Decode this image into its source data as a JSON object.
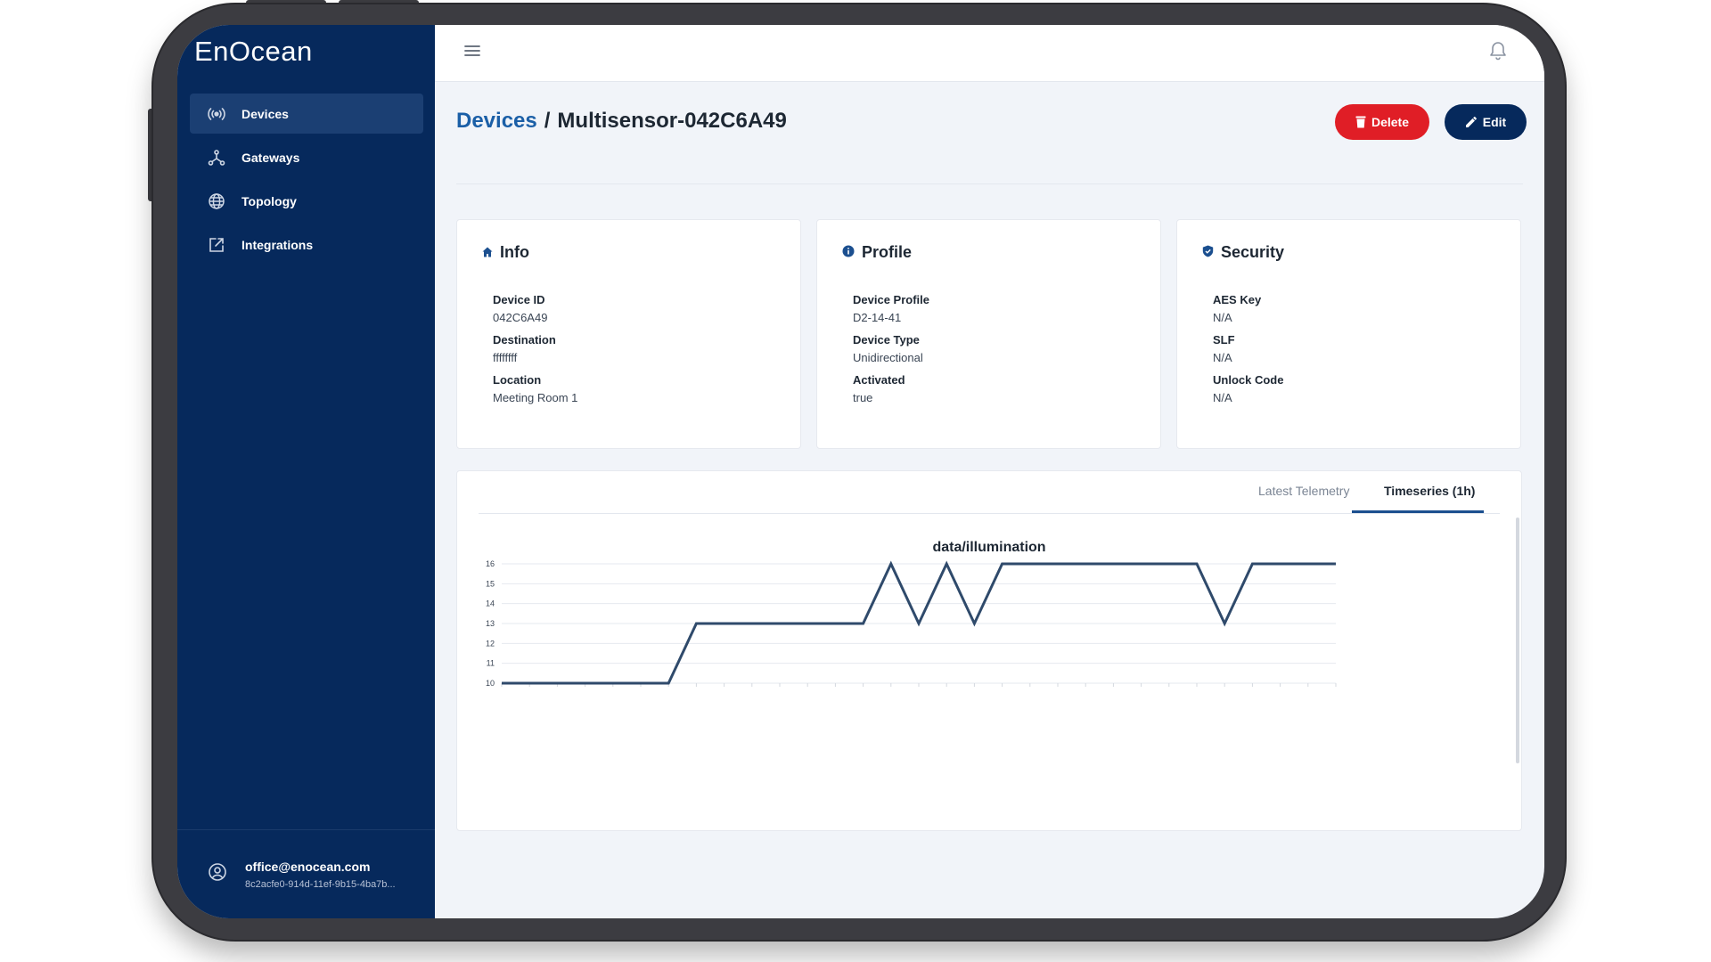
{
  "app": {
    "logo": "EnOcean"
  },
  "sidebar": {
    "items": [
      {
        "label": "Devices",
        "icon": "radio-waves-icon",
        "active": true
      },
      {
        "label": "Gateways",
        "icon": "network-icon",
        "active": false
      },
      {
        "label": "Topology",
        "icon": "globe-icon",
        "active": false
      },
      {
        "label": "Integrations",
        "icon": "external-link-icon",
        "active": false
      }
    ],
    "user": {
      "email": "office@enocean.com",
      "id": "8c2acfe0-914d-11ef-9b15-4ba7b..."
    }
  },
  "header": {
    "breadcrumb_root": "Devices",
    "breadcrumb_separator": "/",
    "device_name": "Multisensor-042C6A49",
    "delete_label": "Delete",
    "edit_label": "Edit"
  },
  "cards": {
    "info": {
      "title": "Info",
      "fields": [
        {
          "label": "Device ID",
          "value": "042C6A49"
        },
        {
          "label": "Destination",
          "value": "ffffffff"
        },
        {
          "label": "Location",
          "value": "Meeting Room 1"
        }
      ]
    },
    "profile": {
      "title": "Profile",
      "fields": [
        {
          "label": "Device Profile",
          "value": "D2-14-41"
        },
        {
          "label": "Device Type",
          "value": "Unidirectional"
        },
        {
          "label": "Activated",
          "value": "true"
        }
      ]
    },
    "security": {
      "title": "Security",
      "fields": [
        {
          "label": "AES Key",
          "value": "N/A"
        },
        {
          "label": "SLF",
          "value": "N/A"
        },
        {
          "label": "Unlock Code",
          "value": "N/A"
        }
      ]
    }
  },
  "tabs": [
    {
      "label": "Latest Telemetry",
      "active": false
    },
    {
      "label": "Timeseries (1h)",
      "active": true
    }
  ],
  "colors": {
    "sidebar": "#06295c",
    "accent": "#1b4f8f",
    "delete": "#e01e26",
    "line": "#2f4a6b"
  },
  "chart_data": {
    "type": "line",
    "title": "data/illumination",
    "xlabel": "",
    "ylabel": "",
    "ylim": [
      10,
      16
    ],
    "yticks": [
      10,
      11,
      12,
      13,
      14,
      15,
      16
    ],
    "grid": true,
    "series": [
      {
        "x": [
          0,
          6,
          7,
          13,
          14,
          15,
          16,
          17,
          18,
          25,
          26,
          27,
          30
        ],
        "values": [
          10,
          10,
          13,
          13,
          16,
          13,
          16,
          13,
          16,
          16,
          13,
          16,
          16
        ]
      }
    ],
    "xlim": [
      0,
      30
    ]
  }
}
